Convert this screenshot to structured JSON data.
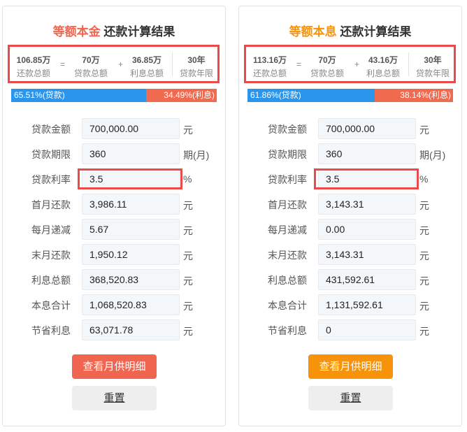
{
  "panels": [
    {
      "title_highlight": "等额本金",
      "title_rest": "还款计算结果",
      "accent": "#f0654f",
      "summary": [
        {
          "value": "106.85万",
          "label": "还款总额"
        },
        {
          "value": "70万",
          "label": "贷款总额"
        },
        {
          "value": "36.85万",
          "label": "利息总额"
        },
        {
          "value": "30年",
          "label": "贷款年限"
        }
      ],
      "operators": [
        "=",
        "+"
      ],
      "progress": {
        "loan": "65.51%(贷款)",
        "interest": "34.49%(利息)"
      },
      "rows": [
        {
          "label": "贷款金额",
          "value": "700,000.00",
          "unit": "元"
        },
        {
          "label": "贷款期限",
          "value": "360",
          "unit": "期(月)"
        },
        {
          "label": "贷款利率",
          "value": "3.5",
          "unit": "%"
        },
        {
          "label": "首月还款",
          "value": "3,986.11",
          "unit": "元"
        },
        {
          "label": "每月递减",
          "value": "5.67",
          "unit": "元"
        },
        {
          "label": "末月还款",
          "value": "1,950.12",
          "unit": "元"
        },
        {
          "label": "利息总额",
          "value": "368,520.83",
          "unit": "元"
        },
        {
          "label": "本息合计",
          "value": "1,068,520.83",
          "unit": "元"
        },
        {
          "label": "节省利息",
          "value": "63,071.78",
          "unit": "元"
        }
      ],
      "buttons": {
        "detail": "查看月供明细",
        "reset": "重置"
      }
    },
    {
      "title_highlight": "等额本息",
      "title_rest": "还款计算结果",
      "accent": "#f7920b",
      "summary": [
        {
          "value": "113.16万",
          "label": "还款总额"
        },
        {
          "value": "70万",
          "label": "贷款总额"
        },
        {
          "value": "43.16万",
          "label": "利息总额"
        },
        {
          "value": "30年",
          "label": "贷款年限"
        }
      ],
      "operators": [
        "=",
        "+"
      ],
      "progress": {
        "loan": "61.86%(贷款)",
        "interest": "38.14%(利息)"
      },
      "rows": [
        {
          "label": "贷款金额",
          "value": "700,000.00",
          "unit": "元"
        },
        {
          "label": "贷款期限",
          "value": "360",
          "unit": "期(月)"
        },
        {
          "label": "贷款利率",
          "value": "3.5",
          "unit": "%"
        },
        {
          "label": "首月还款",
          "value": "3,143.31",
          "unit": "元"
        },
        {
          "label": "每月递减",
          "value": "0.00",
          "unit": "元"
        },
        {
          "label": "末月还款",
          "value": "3,143.31",
          "unit": "元"
        },
        {
          "label": "利息总额",
          "value": "431,592.61",
          "unit": "元"
        },
        {
          "label": "本息合计",
          "value": "1,131,592.61",
          "unit": "元"
        },
        {
          "label": "节省利息",
          "value": "0",
          "unit": "元"
        }
      ],
      "buttons": {
        "detail": "查看月供明细",
        "reset": "重置"
      }
    }
  ]
}
